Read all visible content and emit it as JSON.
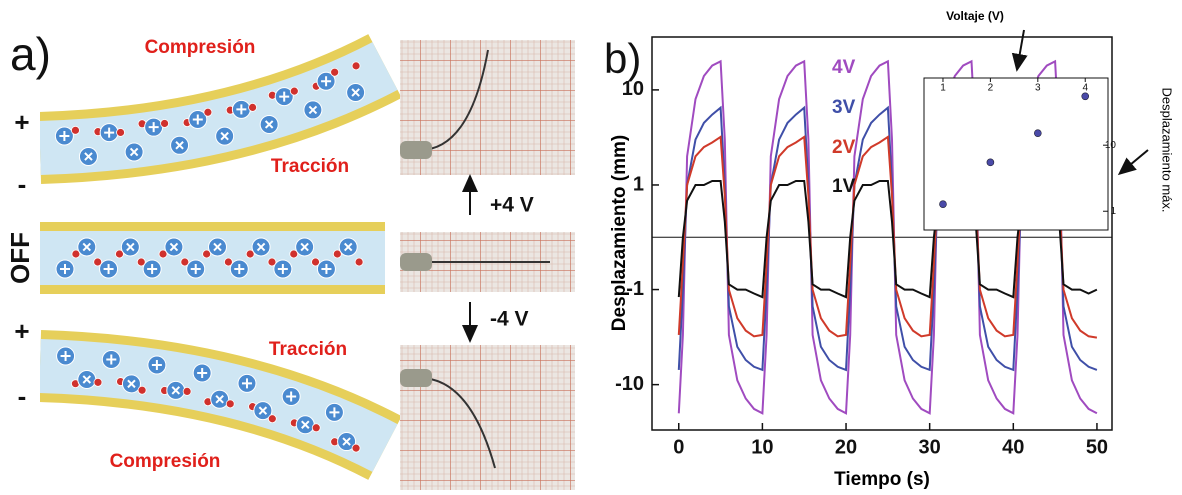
{
  "panel_a": {
    "label": "a)",
    "bend_up": {
      "plus": "+",
      "minus": "-",
      "top": "Compresión",
      "bottom": "Tracción"
    },
    "off": "OFF",
    "bend_down": {
      "plus": "+",
      "minus": "-",
      "top": "Tracción",
      "bottom": "Compresión"
    },
    "voltage_up": "+4 V",
    "voltage_down": "-4 V"
  },
  "chart_data": [
    {
      "type": "line",
      "panel_label": "b)",
      "x_label": "Tiempo (s)",
      "y_label": "Desplazamiento (mm)",
      "x": [
        0,
        0.5,
        1,
        2,
        3,
        4,
        5,
        5.5,
        6,
        7,
        8,
        9,
        10,
        10.5,
        11,
        12,
        13,
        14,
        15,
        15.5,
        16,
        17,
        18,
        19,
        20,
        20.5,
        21,
        22,
        23,
        24,
        25,
        25.5,
        26,
        27,
        28,
        29,
        30,
        30.5,
        31,
        32,
        33,
        34,
        35,
        35.5,
        36,
        37,
        38,
        39,
        40,
        40.5,
        41,
        42,
        43,
        44,
        45,
        45.5,
        46,
        47,
        48,
        49,
        50
      ],
      "series": [
        {
          "name": "4V",
          "color": "#a04bc0",
          "values": [
            -20,
            -3,
            2,
            8,
            14,
            18,
            20,
            3,
            -3,
            -9,
            -14,
            -18,
            -20,
            -3,
            2,
            8,
            14,
            18,
            20,
            3,
            -3,
            -9,
            -14,
            -18,
            -20,
            -3,
            2,
            8,
            14,
            18,
            20,
            3,
            -3,
            -9,
            -14,
            -18,
            -20,
            -3,
            2,
            8,
            14,
            18,
            20,
            3,
            -3,
            -9,
            -14,
            -18,
            -20,
            -3,
            2,
            8,
            14,
            18,
            20,
            3,
            -3,
            -9,
            -14,
            -18,
            -20
          ]
        },
        {
          "name": "3V",
          "color": "#3f4fa8",
          "values": [
            -7,
            -1,
            1,
            3,
            4.5,
            5.5,
            6.5,
            1,
            -1.5,
            -4,
            -5.5,
            -6.5,
            -7,
            -1,
            1,
            3,
            4.5,
            5.5,
            6.5,
            1,
            -1.5,
            -4,
            -5.5,
            -6.5,
            -7,
            -1,
            1,
            3,
            4.5,
            5.5,
            6.5,
            1,
            -1.5,
            -4,
            -5.5,
            -6.5,
            -7,
            -1,
            1,
            3,
            4.5,
            5.5,
            6.5,
            1,
            -1.5,
            -4,
            -5.5,
            -6.5,
            -7,
            -1,
            1,
            3,
            4.5,
            5.5,
            6.5,
            1,
            -1.5,
            -4,
            -5.5,
            -6.5,
            -7
          ]
        },
        {
          "name": "2V",
          "color": "#d03a2a",
          "values": [
            -3,
            -0.5,
            1,
            2,
            2.5,
            2.8,
            3.2,
            0.8,
            -1,
            -2,
            -2.7,
            -3.1,
            -3,
            -0.5,
            1,
            2,
            2.5,
            2.8,
            3.2,
            0.8,
            -1,
            -2,
            -2.7,
            -3.1,
            -3,
            -0.5,
            1,
            2,
            2.5,
            2.8,
            3.2,
            0.8,
            -1,
            -2,
            -2.7,
            -3.1,
            -3,
            -0.5,
            1,
            2,
            2.5,
            2.8,
            3.2,
            0.8,
            -1,
            -2,
            -2.7,
            -3.1,
            -3,
            -0.5,
            1,
            2,
            2.5,
            2.8,
            3.2,
            0.8,
            -1,
            -2,
            -2.7,
            -3.1,
            -3.2
          ]
        },
        {
          "name": "1V",
          "color": "#111111",
          "values": [
            -1.2,
            0,
            0.7,
            1,
            1,
            1.1,
            1.1,
            0.3,
            -0.9,
            -1,
            -1,
            -1.1,
            -1.2,
            0,
            0.7,
            1,
            1,
            1.1,
            1.1,
            0.3,
            -0.9,
            -1,
            -1,
            -1.1,
            -1.2,
            0,
            0.7,
            1,
            1,
            1.1,
            1.1,
            0.3,
            -0.9,
            -1,
            -1,
            -1.1,
            -1.2,
            0,
            0.7,
            1,
            1,
            1.1,
            1.1,
            0.3,
            -0.9,
            -1,
            -1,
            -1.1,
            -1.2,
            0,
            0.7,
            1,
            1,
            1.1,
            1.1,
            0.3,
            -0.9,
            -1,
            -1,
            -1.1,
            -1
          ]
        }
      ],
      "xlim": [
        -3.2,
        51.8
      ],
      "xticks": [
        0,
        10,
        20,
        30,
        40,
        50
      ],
      "ylim": [
        -30,
        36
      ],
      "yticks": [
        -10,
        -1,
        1,
        10
      ],
      "yscale": "symlog",
      "linthresh": 1,
      "linscale": 0.55
    },
    {
      "type": "scatter",
      "x_label": "Voltaje (V)",
      "y_label": "Desplazamiento máx.",
      "x": [
        1,
        2,
        3,
        4
      ],
      "values": [
        1.28,
        5.5,
        15.2,
        55
      ],
      "color": "#4a4aa8",
      "xlim": [
        0.6,
        4.48
      ],
      "xticks": [
        1,
        2,
        3,
        4
      ],
      "ylim": [
        0.52,
        104
      ],
      "yticks": [
        1,
        10
      ],
      "yscale": "log",
      "xaxis": "top",
      "yaxis": "right"
    }
  ]
}
